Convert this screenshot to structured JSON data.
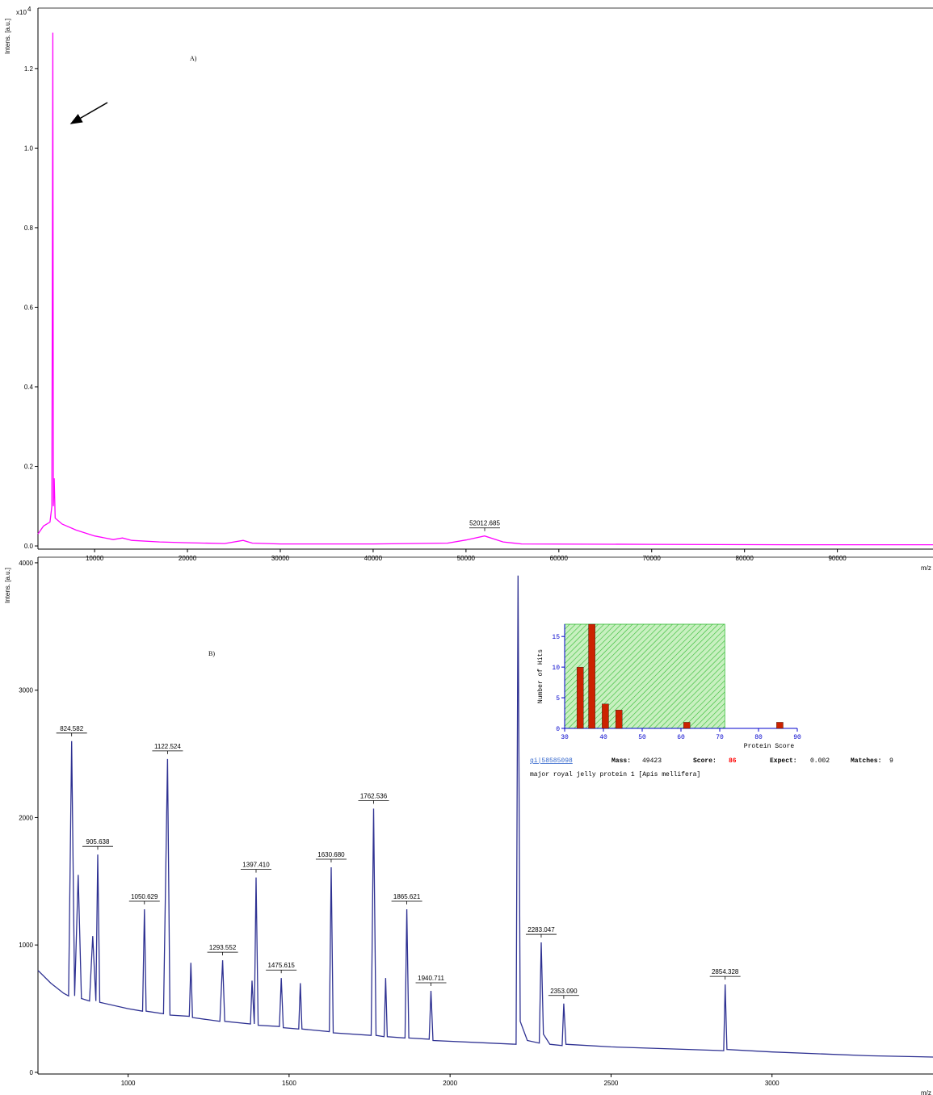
{
  "chart_data": [
    {
      "type": "line",
      "panel_label": "A)",
      "ylabel": "Intens. [a.u.]",
      "y_scale_label": "x10",
      "y_scale_exp": "4",
      "xlabel": "m/z",
      "color": "#ff00ff",
      "axis_color": "#000000",
      "xlim": [
        3900,
        100300
      ],
      "ylim": [
        -0.008,
        1.352
      ],
      "xticks": [
        10000,
        20000,
        30000,
        40000,
        50000,
        60000,
        70000,
        80000,
        90000
      ],
      "yticks": [
        {
          "value": 0,
          "label": "0.0"
        },
        0.2,
        0.4,
        0.6,
        0.8,
        {
          "value": 1,
          "label": "1.0"
        },
        1.2
      ],
      "x": [
        3900,
        4500,
        5200,
        5400,
        5500,
        5560,
        5650,
        5750,
        6500,
        8000,
        10000,
        12000,
        13000,
        14000,
        17000,
        20000,
        24000,
        26000,
        27000,
        30000,
        40000,
        48000,
        50000,
        52000,
        54000,
        56000,
        70000,
        85000,
        100300
      ],
      "values": [
        0.03,
        0.05,
        0.06,
        0.1,
        1.29,
        0.1,
        0.17,
        0.07,
        0.055,
        0.04,
        0.025,
        0.016,
        0.02,
        0.014,
        0.01,
        0.008,
        0.006,
        0.014,
        0.007,
        0.005,
        0.005,
        0.007,
        0.015,
        0.025,
        0.01,
        0.005,
        0.004,
        0.003,
        0.003
      ],
      "peaks": {
        "x": [
          52012.685
        ],
        "values": [
          0.025
        ],
        "value_labels": [
          "52012.685"
        ]
      }
    },
    {
      "type": "line",
      "panel_label": "B)",
      "ylabel": "Intens. [a.u.]",
      "xlabel": "m/z",
      "color": "#2e3192",
      "axis_color": "#000000",
      "xlim": [
        720,
        3500
      ],
      "ylim": [
        -13,
        4044
      ],
      "xticks": [
        1000,
        1500,
        2000,
        2500,
        3000
      ],
      "yticks": [
        0,
        1000,
        2000,
        3000,
        4000
      ],
      "x": [
        720,
        760,
        800,
        815,
        824.582,
        834,
        845,
        855,
        880,
        890,
        900,
        905.638,
        912,
        1000,
        1045,
        1050.629,
        1056,
        1110,
        1122.524,
        1130,
        1190,
        1195,
        1200,
        1285,
        1293.552,
        1300,
        1380,
        1385,
        1392,
        1397.41,
        1404,
        1470,
        1475.615,
        1482,
        1530,
        1535,
        1540,
        1625,
        1630.68,
        1637,
        1755,
        1762.536,
        1770,
        1795,
        1800,
        1805,
        1860,
        1865.621,
        1872,
        1935,
        1940.711,
        1947,
        2205,
        2211,
        2218,
        2240,
        2277,
        2283.047,
        2290,
        2310,
        2348,
        2353.09,
        2360,
        2500,
        2850,
        2854.328,
        2860,
        3000,
        3300,
        3500
      ],
      "values": [
        800,
        700,
        620,
        600,
        2600,
        600,
        1550,
        580,
        560,
        1070,
        560,
        1710,
        550,
        500,
        480,
        1280,
        480,
        460,
        2460,
        450,
        440,
        860,
        430,
        400,
        880,
        400,
        380,
        720,
        380,
        1530,
        370,
        360,
        740,
        350,
        340,
        700,
        340,
        320,
        1610,
        310,
        290,
        2070,
        290,
        280,
        740,
        280,
        270,
        1280,
        270,
        260,
        640,
        250,
        220,
        3900,
        400,
        250,
        230,
        1020,
        300,
        220,
        210,
        540,
        220,
        200,
        170,
        690,
        180,
        160,
        130,
        120
      ],
      "peaks": {
        "x": [
          824.582,
          905.638,
          1050.629,
          1122.524,
          1293.552,
          1397.41,
          1475.615,
          1630.68,
          1762.536,
          1865.621,
          1940.711,
          2283.047,
          2353.09,
          2854.328
        ],
        "values": [
          2600,
          1710,
          1280,
          2460,
          880,
          1530,
          740,
          1610,
          2070,
          1280,
          640,
          1020,
          540,
          690
        ],
        "value_labels": [
          "824.582",
          "905.638",
          "1050.629",
          "1122.524",
          "1293.552",
          "1397.410",
          "1475.615",
          "1630.680",
          "1762.536",
          "1865.621",
          "1940.711",
          "2283.047",
          "2353.090",
          "2854.328"
        ]
      }
    },
    {
      "type": "bar",
      "ylabel": "Number of Hits",
      "xlabel": "Protein Score",
      "color": "#cc2200",
      "axis_color": "#0000cc",
      "threshold": 71.3,
      "threshold_color": "#33bb33",
      "xlim": [
        30,
        90
      ],
      "ylim": [
        0,
        17
      ],
      "xticks": [
        30,
        40,
        50,
        60,
        70,
        80,
        90
      ],
      "yticks": [
        0,
        5,
        10,
        15
      ],
      "x": [
        34,
        37,
        40.5,
        44,
        61.5,
        85.5
      ],
      "values": [
        10,
        17,
        4,
        3,
        1,
        1
      ],
      "hit_accession": "gi|58585098",
      "hit_fields": [
        {
          "key": "Mass:",
          "value": 49423
        },
        {
          "key": "Score:",
          "value": 86
        },
        {
          "key": "Expect:",
          "value": 0.002
        },
        {
          "key": "Matches:",
          "value": 9
        }
      ],
      "hit_description": "major royal jelly protein 1 [Apis mellifera]"
    }
  ]
}
